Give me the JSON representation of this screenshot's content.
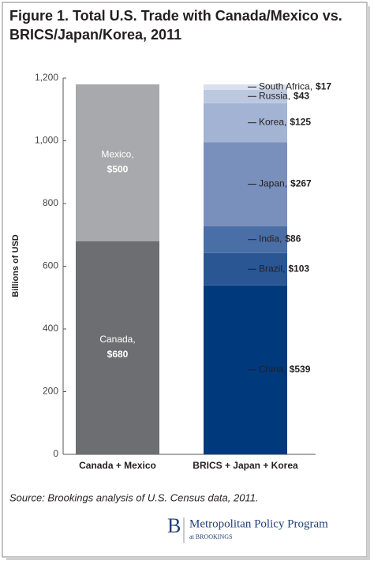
{
  "chart_data": {
    "type": "stacked-bar",
    "title": "Figure 1. Total U.S. Trade with Canada/Mexico vs. BRICS/Japan/Korea, 2011",
    "y_label": "Billions of USD",
    "categories": [
      "Canada + Mexico",
      "BRICS + Japan + Korea"
    ],
    "series": [
      {
        "name": "Canada,",
        "color": "#6d6e71",
        "values": [
          680,
          null
        ],
        "value_labels": [
          "$680",
          null
        ]
      },
      {
        "name": "Mexico,",
        "color": "#a7a9ac",
        "values": [
          500,
          null
        ],
        "value_labels": [
          "$500",
          null
        ]
      },
      {
        "name": "China,",
        "color": "#003a7d",
        "values": [
          null,
          539
        ],
        "value_labels": [
          null,
          "$539"
        ]
      },
      {
        "name": "Brazil,",
        "color": "#2a5694",
        "values": [
          null,
          103
        ],
        "value_labels": [
          null,
          "$103"
        ]
      },
      {
        "name": "India,",
        "color": "#4a6ea6",
        "values": [
          null,
          86
        ],
        "value_labels": [
          null,
          "$86"
        ]
      },
      {
        "name": "Japan,",
        "color": "#7990bd",
        "values": [
          null,
          267
        ],
        "value_labels": [
          null,
          "$267"
        ]
      },
      {
        "name": "Korea,",
        "color": "#a3b3d3",
        "values": [
          null,
          125
        ],
        "value_labels": [
          null,
          "$125"
        ]
      },
      {
        "name": "Russia,",
        "color": "#bcc8e0",
        "values": [
          null,
          43
        ],
        "value_labels": [
          null,
          "$43"
        ]
      },
      {
        "name": "South Africa,",
        "color": "#d9e0ee",
        "values": [
          null,
          17
        ],
        "value_labels": [
          null,
          "$17"
        ]
      }
    ],
    "ylim": [
      0,
      1200
    ],
    "yticks": [
      0,
      200,
      400,
      600,
      800,
      {
        "value": 1000,
        "label": "1,000"
      },
      {
        "value": 1200,
        "label": "1,200"
      }
    ]
  },
  "source": "Source: Brookings analysis of U.S. Census data, 2011.",
  "logo": {
    "mark": "B",
    "name": "Metropolitan Policy Program",
    "sub": "at BROOKINGS"
  }
}
